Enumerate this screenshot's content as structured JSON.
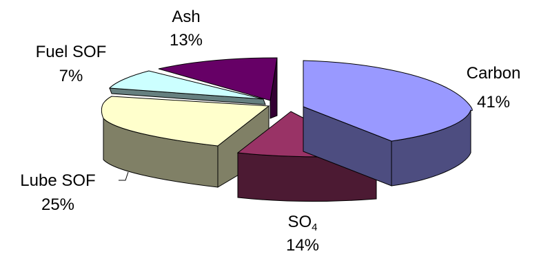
{
  "chart_data": {
    "type": "pie",
    "title": "",
    "categories": [
      "Carbon",
      "SO4",
      "Lube SOF",
      "Fuel SOF",
      "Ash"
    ],
    "values": [
      41,
      14,
      25,
      7,
      13
    ],
    "value_labels": [
      "41%",
      "14%",
      "25%",
      "7%",
      "13%"
    ],
    "exploded": true,
    "three_d": true,
    "legend": "none"
  },
  "labels": {
    "carbon": {
      "name": "Carbon",
      "value": "41%"
    },
    "so4": {
      "name_main": "SO",
      "name_sub": "4",
      "value": "14%"
    },
    "lube": {
      "name": "Lube SOF",
      "value": "25%"
    },
    "fuel": {
      "name": "Fuel SOF",
      "value": "7%"
    },
    "ash": {
      "name": "Ash",
      "value": "13%"
    }
  },
  "colors": {
    "carbon": {
      "top": "#9999ff",
      "side": "#4d4d80"
    },
    "so4": {
      "top": "#993366",
      "side": "#4c1a33"
    },
    "lube": {
      "top": "#ffffcc",
      "side": "#808066"
    },
    "fuel": {
      "top": "#ccffff",
      "side": "#668080"
    },
    "ash": {
      "top": "#660066",
      "side": "#330033"
    }
  }
}
